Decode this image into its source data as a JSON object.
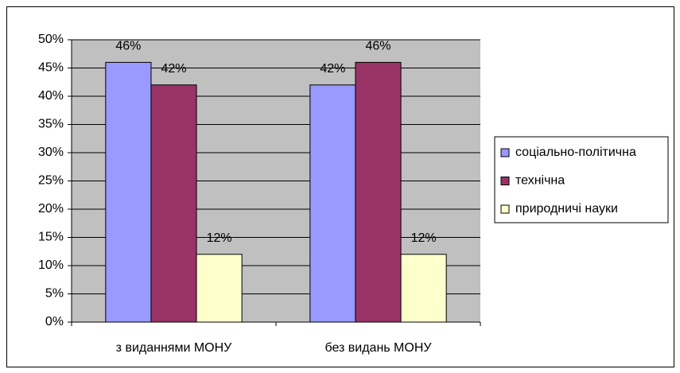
{
  "chart_data": {
    "type": "bar",
    "categories": [
      "з виданнями МОНУ",
      "без видань МОНУ"
    ],
    "series": [
      {
        "name": "соціально-політична",
        "color": "#9999ff",
        "values": [
          46,
          42
        ],
        "value_labels": [
          "46%",
          "42%"
        ]
      },
      {
        "name": "технічна",
        "color": "#993366",
        "values": [
          42,
          46
        ],
        "value_labels": [
          "42%",
          "46%"
        ]
      },
      {
        "name": "природничі науки",
        "color": "#ffffcc",
        "values": [
          12,
          12
        ],
        "value_labels": [
          "12%",
          "12%"
        ]
      }
    ],
    "ylim": [
      0,
      50
    ],
    "yticks": [
      {
        "value": 0,
        "label": "0%"
      },
      {
        "value": 5,
        "label": "5%"
      },
      {
        "value": 10,
        "label": "10%"
      },
      {
        "value": 15,
        "label": "15%"
      },
      {
        "value": 20,
        "label": "20%"
      },
      {
        "value": 25,
        "label": "25%"
      },
      {
        "value": 30,
        "label": "30%"
      },
      {
        "value": 35,
        "label": "35%"
      },
      {
        "value": 40,
        "label": "40%"
      },
      {
        "value": 45,
        "label": "45%"
      },
      {
        "value": 50,
        "label": "50%"
      }
    ],
    "grid": true,
    "legend": "right",
    "plot_background": "#c0c0c0"
  }
}
